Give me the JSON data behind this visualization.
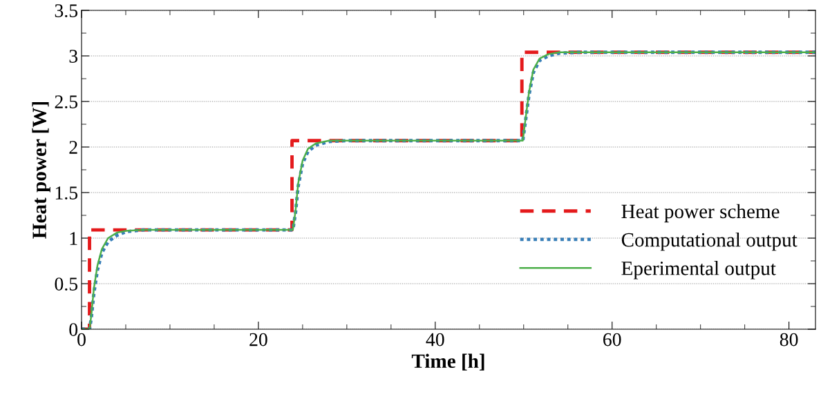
{
  "chart_data": {
    "type": "line",
    "xlabel": "Time [h]",
    "ylabel": "Heat power [W]",
    "xlim": [
      0,
      83
    ],
    "ylim": [
      0,
      3.5
    ],
    "xticks": [
      0,
      20,
      40,
      60,
      80
    ],
    "yticks": [
      0,
      0.5,
      1,
      1.5,
      2,
      2.5,
      3,
      3.5
    ],
    "grid": "y",
    "legend": "right",
    "series": [
      {
        "name": "Heat power scheme",
        "color": "#e41a1c",
        "line_style": "dashed",
        "type": "step",
        "x": [
          0,
          0.9,
          23.8,
          49.8,
          83
        ],
        "values": [
          0,
          1.09,
          2.07,
          3.04,
          3.04
        ]
      },
      {
        "name": "Computational output",
        "color": "#377eb8",
        "line_style": "dotted",
        "x": [
          0,
          0.9,
          1.1,
          1.4,
          1.8,
          2.3,
          3,
          4,
          5,
          7,
          23.9,
          24.2,
          24.5,
          25,
          25.6,
          26.5,
          28,
          30,
          49.9,
          50.2,
          50.6,
          51.1,
          51.8,
          52.8,
          54,
          56,
          83
        ],
        "values": [
          0,
          0,
          0.12,
          0.4,
          0.65,
          0.84,
          0.96,
          1.03,
          1.07,
          1.09,
          1.09,
          1.28,
          1.57,
          1.82,
          1.95,
          2.02,
          2.06,
          2.07,
          2.07,
          2.28,
          2.57,
          2.82,
          2.95,
          3.0,
          3.03,
          3.04,
          3.04
        ]
      },
      {
        "name": "Eperimental output",
        "color": "#4daf4a",
        "line_style": "solid",
        "x": [
          0,
          0.9,
          1.1,
          1.4,
          1.8,
          2.3,
          3,
          4,
          5,
          7,
          23.9,
          24.2,
          24.5,
          25,
          25.6,
          26.5,
          28,
          49.9,
          50.2,
          50.6,
          51.1,
          51.8,
          52.8,
          54,
          83
        ],
        "values": [
          0,
          0,
          0.15,
          0.45,
          0.7,
          0.88,
          1.0,
          1.06,
          1.08,
          1.09,
          1.09,
          1.3,
          1.6,
          1.85,
          1.98,
          2.04,
          2.07,
          2.07,
          2.3,
          2.6,
          2.85,
          2.97,
          3.02,
          3.04,
          3.04
        ]
      }
    ]
  }
}
